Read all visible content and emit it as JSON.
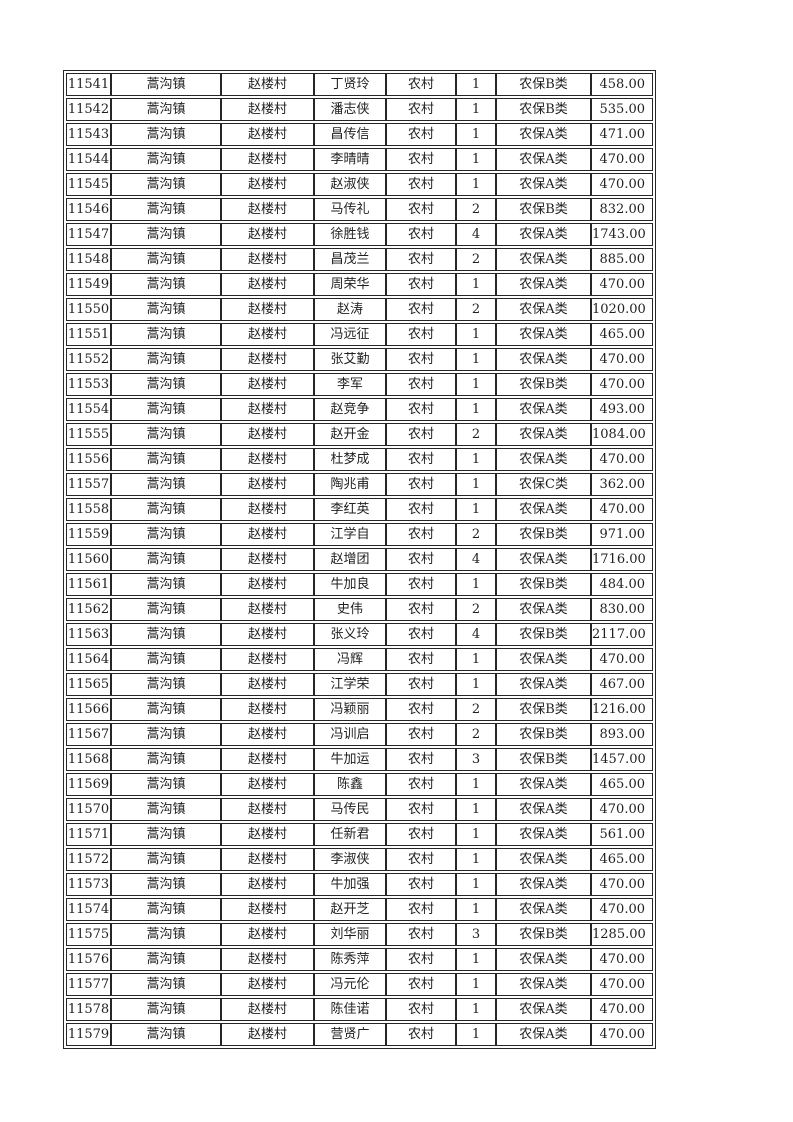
{
  "colors": {
    "background": "#ffffff",
    "border": "#262626",
    "text": "#1f1f1f"
  },
  "table": {
    "columns": [
      "serial",
      "town",
      "village",
      "person-name",
      "residence-type",
      "household-count",
      "insurance-category",
      "amount"
    ],
    "rows": [
      [
        "11541",
        "蒿沟镇",
        "赵楼村",
        "丁贤玲",
        "农村",
        "1",
        "农保B类",
        "458.00"
      ],
      [
        "11542",
        "蒿沟镇",
        "赵楼村",
        "潘志侠",
        "农村",
        "1",
        "农保B类",
        "535.00"
      ],
      [
        "11543",
        "蒿沟镇",
        "赵楼村",
        "昌传信",
        "农村",
        "1",
        "农保A类",
        "471.00"
      ],
      [
        "11544",
        "蒿沟镇",
        "赵楼村",
        "李晴晴",
        "农村",
        "1",
        "农保A类",
        "470.00"
      ],
      [
        "11545",
        "蒿沟镇",
        "赵楼村",
        "赵淑侠",
        "农村",
        "1",
        "农保A类",
        "470.00"
      ],
      [
        "11546",
        "蒿沟镇",
        "赵楼村",
        "马传礼",
        "农村",
        "2",
        "农保B类",
        "832.00"
      ],
      [
        "11547",
        "蒿沟镇",
        "赵楼村",
        "徐胜钱",
        "农村",
        "4",
        "农保A类",
        "1743.00"
      ],
      [
        "11548",
        "蒿沟镇",
        "赵楼村",
        "昌茂兰",
        "农村",
        "2",
        "农保A类",
        "885.00"
      ],
      [
        "11549",
        "蒿沟镇",
        "赵楼村",
        "周荣华",
        "农村",
        "1",
        "农保A类",
        "470.00"
      ],
      [
        "11550",
        "蒿沟镇",
        "赵楼村",
        "赵涛",
        "农村",
        "2",
        "农保A类",
        "1020.00"
      ],
      [
        "11551",
        "蒿沟镇",
        "赵楼村",
        "冯远征",
        "农村",
        "1",
        "农保A类",
        "465.00"
      ],
      [
        "11552",
        "蒿沟镇",
        "赵楼村",
        "张艾勤",
        "农村",
        "1",
        "农保A类",
        "470.00"
      ],
      [
        "11553",
        "蒿沟镇",
        "赵楼村",
        "李军",
        "农村",
        "1",
        "农保B类",
        "470.00"
      ],
      [
        "11554",
        "蒿沟镇",
        "赵楼村",
        "赵竞争",
        "农村",
        "1",
        "农保A类",
        "493.00"
      ],
      [
        "11555",
        "蒿沟镇",
        "赵楼村",
        "赵开金",
        "农村",
        "2",
        "农保A类",
        "1084.00"
      ],
      [
        "11556",
        "蒿沟镇",
        "赵楼村",
        "杜梦成",
        "农村",
        "1",
        "农保A类",
        "470.00"
      ],
      [
        "11557",
        "蒿沟镇",
        "赵楼村",
        "陶兆甫",
        "农村",
        "1",
        "农保C类",
        "362.00"
      ],
      [
        "11558",
        "蒿沟镇",
        "赵楼村",
        "李红英",
        "农村",
        "1",
        "农保A类",
        "470.00"
      ],
      [
        "11559",
        "蒿沟镇",
        "赵楼村",
        "江学自",
        "农村",
        "2",
        "农保B类",
        "971.00"
      ],
      [
        "11560",
        "蒿沟镇",
        "赵楼村",
        "赵增团",
        "农村",
        "4",
        "农保A类",
        "1716.00"
      ],
      [
        "11561",
        "蒿沟镇",
        "赵楼村",
        "牛加良",
        "农村",
        "1",
        "农保B类",
        "484.00"
      ],
      [
        "11562",
        "蒿沟镇",
        "赵楼村",
        "史伟",
        "农村",
        "2",
        "农保A类",
        "830.00"
      ],
      [
        "11563",
        "蒿沟镇",
        "赵楼村",
        "张义玲",
        "农村",
        "4",
        "农保B类",
        "2117.00"
      ],
      [
        "11564",
        "蒿沟镇",
        "赵楼村",
        "冯辉",
        "农村",
        "1",
        "农保A类",
        "470.00"
      ],
      [
        "11565",
        "蒿沟镇",
        "赵楼村",
        "江学荣",
        "农村",
        "1",
        "农保A类",
        "467.00"
      ],
      [
        "11566",
        "蒿沟镇",
        "赵楼村",
        "冯颖丽",
        "农村",
        "2",
        "农保B类",
        "1216.00"
      ],
      [
        "11567",
        "蒿沟镇",
        "赵楼村",
        "冯训启",
        "农村",
        "2",
        "农保B类",
        "893.00"
      ],
      [
        "11568",
        "蒿沟镇",
        "赵楼村",
        "牛加运",
        "农村",
        "3",
        "农保B类",
        "1457.00"
      ],
      [
        "11569",
        "蒿沟镇",
        "赵楼村",
        "陈鑫",
        "农村",
        "1",
        "农保A类",
        "465.00"
      ],
      [
        "11570",
        "蒿沟镇",
        "赵楼村",
        "马传民",
        "农村",
        "1",
        "农保A类",
        "470.00"
      ],
      [
        "11571",
        "蒿沟镇",
        "赵楼村",
        "任新君",
        "农村",
        "1",
        "农保A类",
        "561.00"
      ],
      [
        "11572",
        "蒿沟镇",
        "赵楼村",
        "李淑侠",
        "农村",
        "1",
        "农保A类",
        "465.00"
      ],
      [
        "11573",
        "蒿沟镇",
        "赵楼村",
        "牛加强",
        "农村",
        "1",
        "农保A类",
        "470.00"
      ],
      [
        "11574",
        "蒿沟镇",
        "赵楼村",
        "赵开芝",
        "农村",
        "1",
        "农保A类",
        "470.00"
      ],
      [
        "11575",
        "蒿沟镇",
        "赵楼村",
        "刘华丽",
        "农村",
        "3",
        "农保B类",
        "1285.00"
      ],
      [
        "11576",
        "蒿沟镇",
        "赵楼村",
        "陈秀萍",
        "农村",
        "1",
        "农保A类",
        "470.00"
      ],
      [
        "11577",
        "蒿沟镇",
        "赵楼村",
        "冯元伦",
        "农村",
        "1",
        "农保A类",
        "470.00"
      ],
      [
        "11578",
        "蒿沟镇",
        "赵楼村",
        "陈佳诺",
        "农村",
        "1",
        "农保A类",
        "470.00"
      ],
      [
        "11579",
        "蒿沟镇",
        "赵楼村",
        "营贤广",
        "农村",
        "1",
        "农保A类",
        "470.00"
      ]
    ]
  }
}
